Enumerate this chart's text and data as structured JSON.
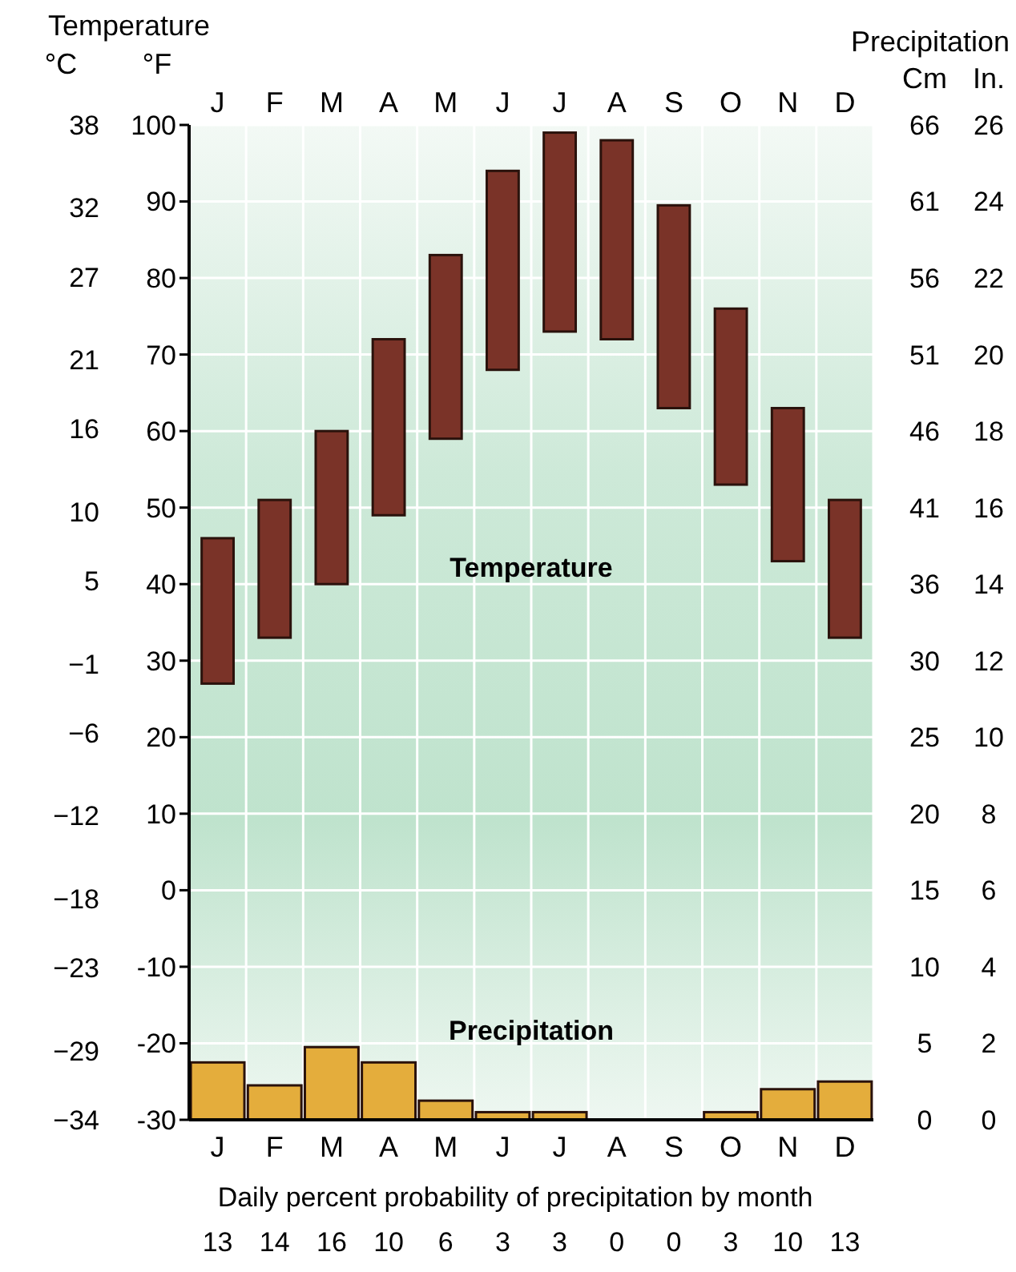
{
  "chart_data": {
    "type": "bar",
    "categories": [
      "J",
      "F",
      "M",
      "A",
      "M",
      "J",
      "J",
      "A",
      "S",
      "O",
      "N",
      "D"
    ],
    "series": [
      {
        "name": "Temperature",
        "color": "#7a3328",
        "base": [
          27,
          33,
          40,
          49,
          59,
          68,
          73,
          72,
          63,
          53,
          43,
          33
        ],
        "values": [
          19,
          18,
          20,
          23,
          24,
          26,
          26,
          26,
          26.5,
          23,
          20,
          18
        ]
      },
      {
        "name": "Precipitation",
        "color": "#e4ad3c",
        "axis": "y2",
        "values": [
          1.5,
          0.9,
          1.9,
          1.5,
          0.5,
          0.2,
          0.2,
          0,
          0,
          0.2,
          0.8,
          1.0
        ]
      }
    ],
    "ylabel": "°F",
    "ylim": [
      -30,
      100
    ],
    "yticks": [
      -30,
      -20,
      -10,
      0,
      10,
      20,
      30,
      40,
      50,
      60,
      70,
      80,
      90,
      100
    ],
    "y3label": "°C",
    "y3lim": [
      -34,
      38
    ],
    "y3ticks": [
      {
        "value": -34,
        "label": "−34"
      },
      {
        "value": -29,
        "label": "−29"
      },
      {
        "value": -23,
        "label": "−23"
      },
      {
        "value": -18,
        "label": "−18"
      },
      {
        "value": -12,
        "label": "−12"
      },
      {
        "value": -6,
        "label": "−6"
      },
      {
        "value": -1,
        "label": "−1"
      },
      5,
      10,
      16,
      21,
      27,
      32,
      38
    ],
    "y2label": "In.",
    "y2lim": [
      0,
      26
    ],
    "y2ticks": [
      0,
      2,
      4,
      6,
      8,
      10,
      12,
      14,
      16,
      18,
      20,
      22,
      24,
      26
    ],
    "annotations": [
      "Temperature",
      "Precipitation",
      "Cm",
      "66",
      "61",
      "56",
      "51",
      "46",
      "41",
      "36",
      "30",
      "25",
      "20",
      "15",
      "10",
      "5",
      "0",
      "Daily percent probability of precipitation by month",
      "13",
      "14",
      "16",
      "10",
      "6",
      "3",
      "3",
      "0",
      "0",
      "3",
      "10",
      "13"
    ],
    "grid": true
  }
}
